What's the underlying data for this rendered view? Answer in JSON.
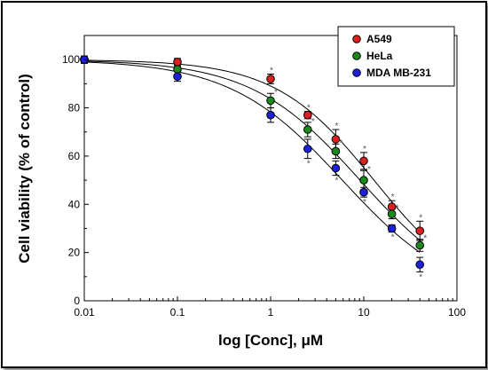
{
  "chart_data": {
    "type": "scatter",
    "title": "",
    "xlabel": "log [Conc], μM",
    "ylabel": "Cell viability (% of control)",
    "x_scale": "log",
    "xlim": [
      0.01,
      100
    ],
    "ylim": [
      0,
      110
    ],
    "x_ticks": [
      0.01,
      0.1,
      1,
      10,
      100
    ],
    "x_tick_labels": [
      "0.01",
      "0.1",
      "1",
      "10",
      "100"
    ],
    "y_ticks": [
      0,
      20,
      40,
      60,
      80,
      100
    ],
    "y_tick_labels": [
      "0",
      "20",
      "40",
      "60",
      "80",
      "100"
    ],
    "grid": false,
    "legend_position": "top-right",
    "significance_marker": "*",
    "x": [
      0.01,
      0.1,
      1,
      2.5,
      5,
      10,
      20,
      40
    ],
    "series": [
      {
        "name": "A549",
        "color": "#e02020",
        "values": [
          100,
          99,
          92,
          77,
          67,
          58,
          39,
          29
        ],
        "errors": [
          1.5,
          1.5,
          2,
          1.5,
          4,
          3.5,
          2.5,
          4
        ],
        "significant": [
          false,
          false,
          true,
          true,
          true,
          true,
          true,
          true
        ]
      },
      {
        "name": "HeLa",
        "color": "#1a8a1a",
        "values": [
          100,
          96,
          83,
          71,
          62,
          50,
          36,
          23
        ],
        "errors": [
          1.5,
          2,
          3,
          3,
          3,
          4,
          2,
          2.5
        ],
        "significant": [
          false,
          false,
          true,
          true,
          true,
          true,
          true,
          true
        ]
      },
      {
        "name": "MDA MB-231",
        "color": "#1f1fe0",
        "values": [
          100,
          93,
          77,
          63,
          55,
          45,
          30,
          15
        ],
        "errors": [
          1.5,
          2,
          3,
          4,
          3,
          2,
          1.5,
          3
        ],
        "significant": [
          false,
          false,
          false,
          true,
          true,
          true,
          true,
          true
        ]
      }
    ]
  }
}
